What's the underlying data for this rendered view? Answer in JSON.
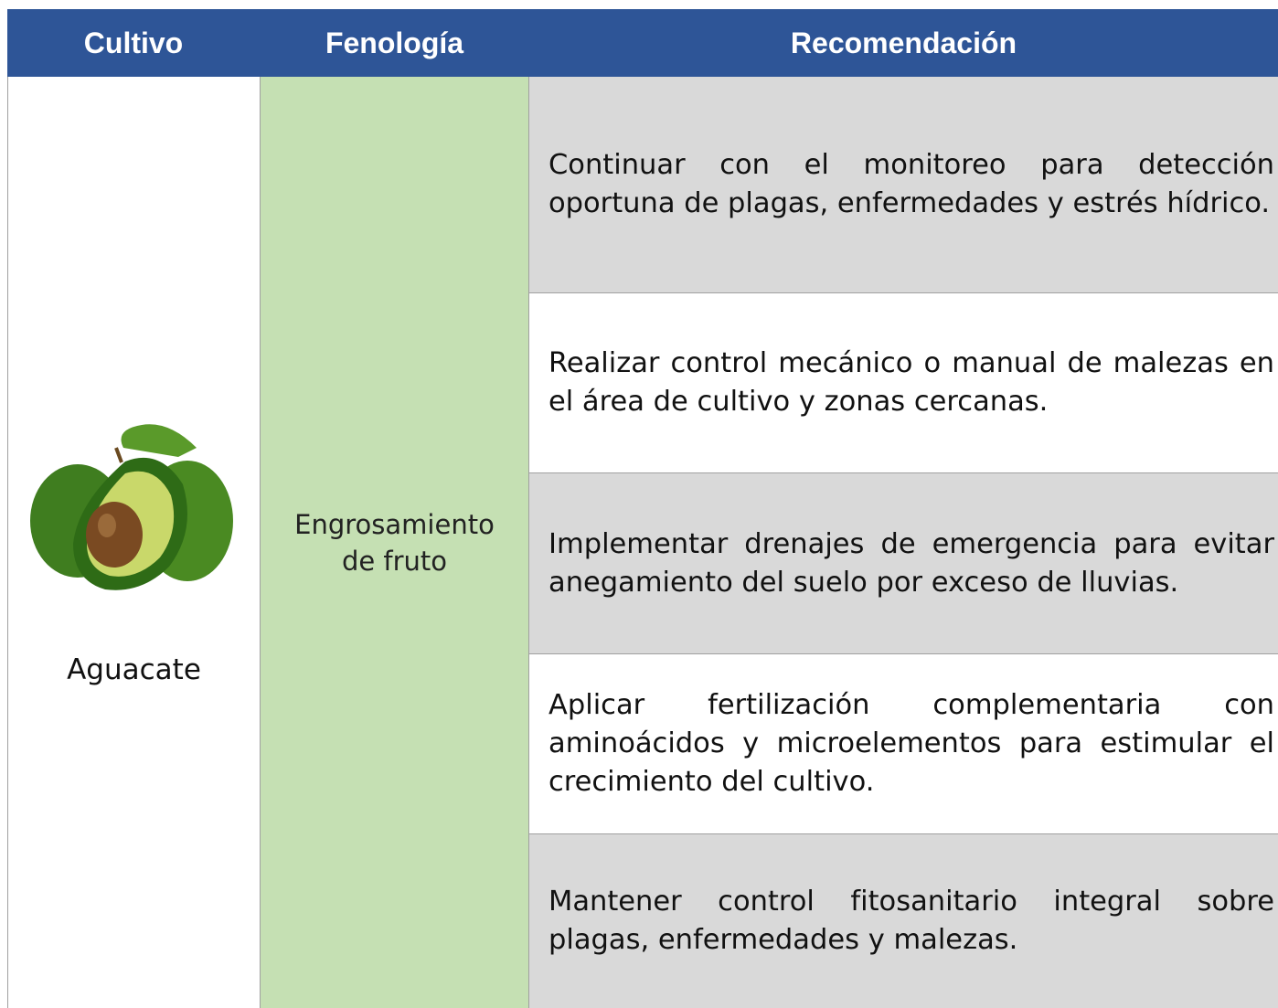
{
  "table": {
    "header": [
      "Cultivo",
      "Fenología",
      "Recomendación"
    ],
    "crop": "Aguacate",
    "phenology": "Engrosamiento de fruto",
    "recommendations": [
      "Continuar con el monitoreo para detección oportuna de plagas, enfermedades y estrés hídrico.",
      "Realizar control mecánico o manual de malezas en el área de cultivo y zonas cercanas.",
      "Implementar drenajes de emergencia para evitar anegamiento del suelo por exceso de lluvias.",
      "Aplicar fertilización complementaria con aminoácidos y microelementos para estimular el crecimiento del cultivo.",
      "Mantener control fitosanitario integral sobre plagas, enfermedades y malezas."
    ]
  }
}
